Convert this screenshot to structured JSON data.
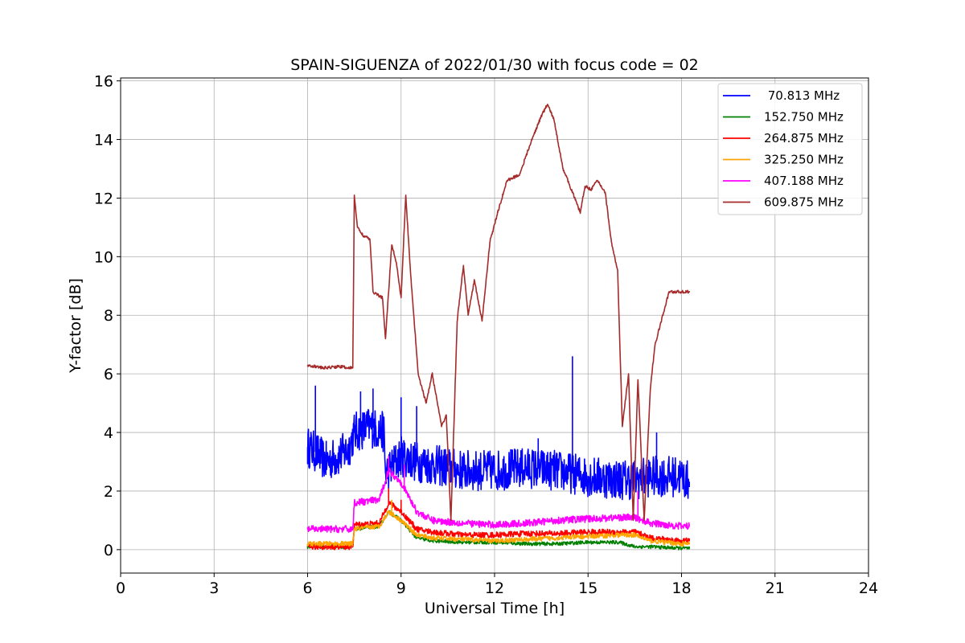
{
  "chart_data": {
    "type": "line",
    "title": "SPAIN-SIGUENZA of 2022/01/30 with focus code = 02",
    "xlabel": "Universal Time [h]",
    "ylabel": "Y-factor [dB]",
    "xlim": [
      0,
      24
    ],
    "ylim": [
      -0.8,
      16.1
    ],
    "xticks": [
      0,
      3,
      6,
      9,
      12,
      15,
      18,
      21,
      24
    ],
    "yticks": [
      0,
      2,
      4,
      6,
      8,
      10,
      12,
      14,
      16
    ],
    "grid": true,
    "legend_position": "top-right",
    "series": [
      {
        "name": " 70.813 MHz",
        "color": "#0000ff",
        "noise": 0.7,
        "spikes": [
          [
            6.25,
            5.6
          ],
          [
            7.7,
            5.4
          ],
          [
            8.1,
            5.5
          ],
          [
            9.0,
            5.2
          ],
          [
            9.5,
            4.9
          ],
          [
            13.4,
            3.8
          ],
          [
            14.5,
            6.6
          ],
          [
            17.2,
            4.0
          ]
        ],
        "points": [
          [
            6.0,
            3.5
          ],
          [
            6.3,
            3.3
          ],
          [
            6.6,
            3.0
          ],
          [
            7.0,
            3.2
          ],
          [
            7.3,
            3.4
          ],
          [
            7.5,
            4.0
          ],
          [
            8.0,
            4.2
          ],
          [
            8.45,
            4.0
          ],
          [
            8.5,
            2.6
          ],
          [
            9.0,
            3.2
          ],
          [
            9.5,
            3.0
          ],
          [
            10.0,
            2.9
          ],
          [
            11.0,
            2.7
          ],
          [
            12.0,
            2.7
          ],
          [
            13.0,
            2.8
          ],
          [
            14.0,
            2.7
          ],
          [
            15.0,
            2.5
          ],
          [
            16.0,
            2.4
          ],
          [
            16.5,
            2.4
          ],
          [
            17.0,
            2.5
          ],
          [
            17.5,
            2.5
          ],
          [
            18.0,
            2.5
          ],
          [
            18.25,
            2.3
          ]
        ]
      },
      {
        "name": "152.750 MHz",
        "color": "#008000",
        "noise": 0.06,
        "spikes": [],
        "points": [
          [
            6.0,
            0.1
          ],
          [
            7.45,
            0.1
          ],
          [
            7.5,
            0.7
          ],
          [
            8.3,
            0.8
          ],
          [
            8.6,
            1.3
          ],
          [
            9.0,
            1.0
          ],
          [
            9.5,
            0.4
          ],
          [
            10.0,
            0.3
          ],
          [
            11.0,
            0.25
          ],
          [
            12.0,
            0.25
          ],
          [
            13.0,
            0.2
          ],
          [
            14.0,
            0.2
          ],
          [
            15.0,
            0.25
          ],
          [
            16.0,
            0.25
          ],
          [
            16.5,
            0.1
          ],
          [
            17.0,
            0.1
          ],
          [
            18.0,
            0.05
          ],
          [
            18.25,
            0.05
          ]
        ]
      },
      {
        "name": "264.875 MHz",
        "color": "#ff0000",
        "noise": 0.1,
        "spikes": [
          [
            8.6,
            2.1
          ],
          [
            9.0,
            1.7
          ]
        ],
        "points": [
          [
            6.0,
            0.1
          ],
          [
            7.45,
            0.1
          ],
          [
            7.5,
            0.85
          ],
          [
            8.3,
            0.9
          ],
          [
            8.6,
            1.6
          ],
          [
            9.0,
            1.3
          ],
          [
            9.5,
            0.7
          ],
          [
            10.0,
            0.6
          ],
          [
            11.0,
            0.5
          ],
          [
            12.0,
            0.5
          ],
          [
            13.0,
            0.55
          ],
          [
            14.0,
            0.55
          ],
          [
            15.0,
            0.6
          ],
          [
            16.0,
            0.6
          ],
          [
            16.5,
            0.6
          ],
          [
            17.0,
            0.4
          ],
          [
            18.0,
            0.3
          ],
          [
            18.25,
            0.3
          ]
        ]
      },
      {
        "name": "325.250 MHz",
        "color": "#ffa500",
        "noise": 0.08,
        "spikes": [
          [
            8.7,
            1.7
          ]
        ],
        "points": [
          [
            6.0,
            0.2
          ],
          [
            7.45,
            0.2
          ],
          [
            7.5,
            0.7
          ],
          [
            8.3,
            0.8
          ],
          [
            8.6,
            1.3
          ],
          [
            9.0,
            1.0
          ],
          [
            9.5,
            0.5
          ],
          [
            10.0,
            0.4
          ],
          [
            11.0,
            0.35
          ],
          [
            12.0,
            0.3
          ],
          [
            13.0,
            0.35
          ],
          [
            14.0,
            0.4
          ],
          [
            15.0,
            0.45
          ],
          [
            16.0,
            0.5
          ],
          [
            16.5,
            0.5
          ],
          [
            17.0,
            0.3
          ],
          [
            18.0,
            0.2
          ],
          [
            18.25,
            0.2
          ]
        ]
      },
      {
        "name": "407.188 MHz",
        "color": "#ff00ff",
        "noise": 0.12,
        "spikes": [
          [
            8.6,
            3.2
          ],
          [
            9.1,
            2.9
          ],
          [
            16.6,
            2.0
          ]
        ],
        "points": [
          [
            6.0,
            0.7
          ],
          [
            7.45,
            0.7
          ],
          [
            7.5,
            1.6
          ],
          [
            8.3,
            1.7
          ],
          [
            8.6,
            2.7
          ],
          [
            9.0,
            2.3
          ],
          [
            9.5,
            1.3
          ],
          [
            10.0,
            1.0
          ],
          [
            11.0,
            0.9
          ],
          [
            12.0,
            0.85
          ],
          [
            13.0,
            0.9
          ],
          [
            14.0,
            1.0
          ],
          [
            15.0,
            1.05
          ],
          [
            16.0,
            1.1
          ],
          [
            16.5,
            1.1
          ],
          [
            17.0,
            0.9
          ],
          [
            18.0,
            0.8
          ],
          [
            18.25,
            0.8
          ]
        ]
      },
      {
        "name": "609.875 MHz",
        "color": "#a52a2a",
        "noise": 0.05,
        "spikes": [],
        "points": [
          [
            6.0,
            6.3
          ],
          [
            6.5,
            6.2
          ],
          [
            7.0,
            6.25
          ],
          [
            7.4,
            6.2
          ],
          [
            7.45,
            6.2
          ],
          [
            7.5,
            12.1
          ],
          [
            7.6,
            11.0
          ],
          [
            7.8,
            10.7
          ],
          [
            8.0,
            10.6
          ],
          [
            8.1,
            8.8
          ],
          [
            8.4,
            8.6
          ],
          [
            8.5,
            7.2
          ],
          [
            8.7,
            10.4
          ],
          [
            8.85,
            9.8
          ],
          [
            9.0,
            8.6
          ],
          [
            9.15,
            12.1
          ],
          [
            9.3,
            9.5
          ],
          [
            9.55,
            6.0
          ],
          [
            9.8,
            5.0
          ],
          [
            10.0,
            6.0
          ],
          [
            10.3,
            4.2
          ],
          [
            10.45,
            4.6
          ],
          [
            10.6,
            1.0
          ],
          [
            10.8,
            7.8
          ],
          [
            11.0,
            9.7
          ],
          [
            11.15,
            8.0
          ],
          [
            11.35,
            9.2
          ],
          [
            11.6,
            7.8
          ],
          [
            11.85,
            10.5
          ],
          [
            12.1,
            11.5
          ],
          [
            12.4,
            12.6
          ],
          [
            12.8,
            12.8
          ],
          [
            13.2,
            14.0
          ],
          [
            13.5,
            14.8
          ],
          [
            13.7,
            15.2
          ],
          [
            13.9,
            14.7
          ],
          [
            14.2,
            13.0
          ],
          [
            14.5,
            12.2
          ],
          [
            14.75,
            11.5
          ],
          [
            14.9,
            12.4
          ],
          [
            15.1,
            12.3
          ],
          [
            15.3,
            12.6
          ],
          [
            15.55,
            12.2
          ],
          [
            15.75,
            10.5
          ],
          [
            15.95,
            9.5
          ],
          [
            16.1,
            4.2
          ],
          [
            16.3,
            6.0
          ],
          [
            16.45,
            1.0
          ],
          [
            16.6,
            5.8
          ],
          [
            16.8,
            1.0
          ],
          [
            17.0,
            5.5
          ],
          [
            17.15,
            7.0
          ],
          [
            17.45,
            8.2
          ],
          [
            17.6,
            8.8
          ],
          [
            18.0,
            8.8
          ],
          [
            18.25,
            8.8
          ]
        ]
      }
    ]
  }
}
